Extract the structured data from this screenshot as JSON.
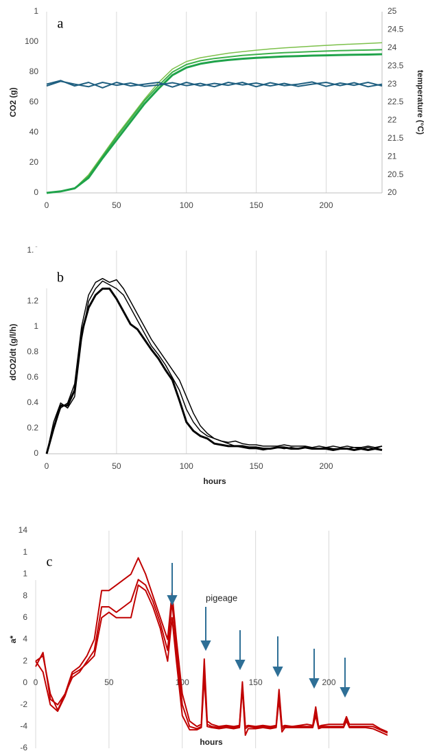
{
  "chart_data": [
    {
      "type": "line",
      "panel_label": "a",
      "ylabel": "CO2 (g)",
      "y2label": "temperature (°C)",
      "x": [
        0,
        10,
        20,
        30,
        40,
        50,
        60,
        70,
        80,
        90,
        100,
        110,
        120,
        130,
        140,
        150,
        160,
        170,
        180,
        190,
        200,
        210,
        220,
        230,
        240
      ],
      "xlim": [
        0,
        240
      ],
      "xticks": [
        0,
        50,
        100,
        150,
        200
      ],
      "ylim": [
        0,
        120
      ],
      "yticks": [
        0,
        20,
        40,
        60,
        80,
        100,
        {
          "value": 120,
          "label": "1"
        }
      ],
      "y2lim": [
        20,
        25
      ],
      "y2ticks": [
        20,
        20.5,
        21,
        21.5,
        22,
        22.5,
        23,
        23.5,
        24,
        24.5,
        25
      ],
      "grid": "x",
      "series": [
        {
          "color": "#7cc04a",
          "line_width": 1.5,
          "values": [
            0,
            1,
            3,
            12,
            25,
            38,
            50,
            62,
            73,
            82,
            87,
            89.5,
            91,
            92.5,
            93.5,
            94.5,
            95.3,
            96,
            96.6,
            97.2,
            97.7,
            98.2,
            98.6,
            99,
            99.4
          ]
        },
        {
          "color": "#3cb04a",
          "line_width": 2,
          "values": [
            0,
            1,
            3,
            11,
            24,
            37,
            49,
            61,
            71,
            80,
            85,
            87.5,
            89,
            90,
            91,
            91.7,
            92.3,
            92.8,
            93.2,
            93.6,
            93.9,
            94.2,
            94.4,
            94.6,
            94.8
          ]
        },
        {
          "color": "#1fa34a",
          "line_width": 3,
          "values": [
            0,
            1,
            3,
            10,
            23,
            35,
            47,
            59,
            69,
            78,
            83,
            85.5,
            87,
            88,
            88.8,
            89.4,
            89.9,
            90.3,
            90.6,
            90.9,
            91.1,
            91.3,
            91.5,
            91.6,
            91.8
          ]
        },
        {
          "color": "#1f5f80",
          "line_width": 2,
          "axis": "y2",
          "values": [
            23,
            23.1,
            22.95,
            23.05,
            22.9,
            23.05,
            22.95,
            23.0,
            23.05,
            22.92,
            23.05,
            22.95,
            23.02,
            22.97,
            23.05,
            22.93,
            23.04,
            22.96,
            23.0,
            23.06,
            22.94,
            23.03,
            22.97,
            23.05,
            22.95
          ]
        },
        {
          "color": "#1f5f80",
          "line_width": 2,
          "axis": "y2",
          "values": [
            22.95,
            23.08,
            23.0,
            22.93,
            23.05,
            22.97,
            23.03,
            22.94,
            22.98,
            23.04,
            22.96,
            23.02,
            22.93,
            23.05,
            22.98,
            23.03,
            22.95,
            23.02,
            22.94,
            23.0,
            23.05,
            22.96,
            23.04,
            22.93,
            23.0
          ]
        }
      ]
    },
    {
      "type": "line",
      "panel_label": "b",
      "ylabel": "dCO2/dt (g/l/h)",
      "xlabel": "hours",
      "x": [
        0,
        5,
        10,
        15,
        20,
        25,
        30,
        35,
        40,
        45,
        50,
        55,
        60,
        65,
        70,
        75,
        80,
        85,
        90,
        95,
        100,
        105,
        110,
        115,
        120,
        125,
        130,
        135,
        140,
        145,
        150,
        155,
        160,
        165,
        170,
        175,
        180,
        185,
        190,
        195,
        200,
        205,
        210,
        215,
        220,
        225,
        230,
        235,
        240
      ],
      "xlim": [
        0,
        240
      ],
      "xticks": [
        0,
        50,
        100,
        150,
        200
      ],
      "ylim": [
        0,
        1.6
      ],
      "yticks": [
        0,
        0.2,
        0.4,
        0.6,
        0.8,
        1,
        1.2,
        {
          "value": 1.4,
          "label": "1"
        },
        {
          "value": 1.6,
          "label": "1.6"
        }
      ],
      "grid": "x",
      "series": [
        {
          "color": "#000000",
          "line_width": 3,
          "values": [
            0,
            0.2,
            0.38,
            0.38,
            0.5,
            0.95,
            1.15,
            1.25,
            1.3,
            1.3,
            1.22,
            1.12,
            1.02,
            0.98,
            0.9,
            0.82,
            0.75,
            0.66,
            0.58,
            0.42,
            0.25,
            0.18,
            0.14,
            0.12,
            0.08,
            0.07,
            0.06,
            0.06,
            0.06,
            0.05,
            0.05,
            0.04,
            0.04,
            0.05,
            0.05,
            0.04,
            0.04,
            0.05,
            0.04,
            0.04,
            0.04,
            0.03,
            0.04,
            0.04,
            0.03,
            0.04,
            0.03,
            0.04,
            0.03
          ]
        },
        {
          "color": "#000000",
          "line_width": 1.5,
          "values": [
            0,
            0.25,
            0.4,
            0.36,
            0.45,
            0.9,
            1.2,
            1.3,
            1.36,
            1.33,
            1.3,
            1.25,
            1.15,
            1.05,
            0.95,
            0.85,
            0.78,
            0.7,
            0.6,
            0.5,
            0.35,
            0.25,
            0.18,
            0.14,
            0.12,
            0.1,
            0.09,
            0.1,
            0.08,
            0.07,
            0.07,
            0.06,
            0.06,
            0.06,
            0.07,
            0.06,
            0.06,
            0.06,
            0.05,
            0.06,
            0.05,
            0.06,
            0.05,
            0.06,
            0.05,
            0.05,
            0.06,
            0.05,
            0.06
          ]
        },
        {
          "color": "#000000",
          "line_width": 1.5,
          "values": [
            0,
            0.2,
            0.36,
            0.4,
            0.55,
            1.0,
            1.25,
            1.35,
            1.38,
            1.35,
            1.37,
            1.3,
            1.2,
            1.1,
            1.0,
            0.9,
            0.82,
            0.74,
            0.66,
            0.58,
            0.45,
            0.32,
            0.22,
            0.16,
            0.12,
            0.1,
            0.08,
            0.06,
            0.05,
            0.04,
            0.04,
            0.03,
            0.04,
            0.05,
            0.04,
            0.05,
            0.04,
            0.05,
            0.04,
            0.04,
            0.05,
            0.04,
            0.04,
            0.04,
            0.05,
            0.04,
            0.05,
            0.04,
            0.06
          ]
        }
      ]
    },
    {
      "type": "line",
      "panel_label": "c",
      "ylabel": "a*",
      "xlabel": "hours",
      "annotation": "pigeage",
      "x": [
        0,
        5,
        10,
        15,
        20,
        25,
        30,
        35,
        40,
        45,
        50,
        55,
        60,
        65,
        70,
        75,
        80,
        85,
        90,
        93,
        96,
        100,
        105,
        110,
        113,
        115,
        117,
        120,
        125,
        130,
        135,
        139,
        141,
        143,
        145,
        150,
        155,
        160,
        164,
        166,
        168,
        170,
        175,
        180,
        185,
        189,
        191,
        193,
        195,
        200,
        205,
        210,
        212,
        214,
        220,
        225,
        230,
        235,
        240
      ],
      "xlim": [
        0,
        240
      ],
      "xticks": [
        0,
        50,
        100,
        150,
        200
      ],
      "ylim": [
        -6,
        14
      ],
      "yticks": [
        -6,
        -4,
        -2,
        0,
        2,
        4,
        6,
        8,
        {
          "value": 10,
          "label": "1"
        },
        {
          "value": 12,
          "label": "1"
        },
        {
          "value": 14,
          "label": "14"
        }
      ],
      "grid": "x",
      "series": [
        {
          "color": "#c00000",
          "line_width": 2,
          "values": [
            2,
            2.5,
            -1,
            -2.5,
            -1,
            1,
            1.5,
            2.5,
            4,
            8.5,
            8.5,
            9,
            9.5,
            10,
            11.5,
            10,
            8,
            6,
            4,
            8.3,
            4,
            -1,
            -3.5,
            -4,
            -3.8,
            2.2,
            -3.5,
            -3.8,
            -4,
            -3.9,
            -4,
            -3.9,
            0.1,
            -4,
            -3.9,
            -4,
            -3.9,
            -4,
            -3.9,
            -0.6,
            -4,
            -3.9,
            -4,
            -3.9,
            -3.8,
            -3.9,
            -2.2,
            -4,
            -3.9,
            -3.8,
            -3.8,
            -3.8,
            -3.1,
            -3.8,
            -3.8,
            -3.8,
            -3.8,
            -4.2,
            -4.5
          ]
        },
        {
          "color": "#c00000",
          "line_width": 2,
          "values": [
            1.5,
            2.8,
            -1.5,
            -2,
            -1,
            0.5,
            1,
            2,
            3,
            7,
            7,
            6.5,
            7,
            7.5,
            9.5,
            9,
            7.5,
            5.5,
            3,
            7.5,
            3,
            -2,
            -4,
            -4.2,
            -4,
            1.5,
            -3.8,
            -4,
            -4.1,
            -4,
            -4.1,
            -4,
            -0.2,
            -4.2,
            -4,
            -4.1,
            -4,
            -4.1,
            -4,
            -1,
            -4.2,
            -4,
            -4,
            -4,
            -4,
            -4,
            -2.5,
            -4.1,
            -4,
            -4,
            -4,
            -4,
            -3.3,
            -4,
            -4,
            -4,
            -4,
            -4.3,
            -4.6
          ]
        },
        {
          "color": "#c00000",
          "line_width": 2,
          "values": [
            2,
            1,
            -2,
            -2.6,
            -1.2,
            0.8,
            1.2,
            1.8,
            2.5,
            6,
            6.5,
            6,
            6,
            6,
            9,
            8.5,
            7,
            5,
            2,
            6,
            2,
            -3,
            -4.3,
            -4.3,
            -4.1,
            0.5,
            -4,
            -4.1,
            -4.2,
            -4.1,
            -4.2,
            -4.1,
            -0.5,
            -4.8,
            -4.2,
            -4.2,
            -4.1,
            -4.2,
            -4.1,
            -1.5,
            -4.5,
            -4.1,
            -4.1,
            -4.1,
            -4.1,
            -4.1,
            -3,
            -4.2,
            -4.1,
            -4.1,
            -4.1,
            -4.1,
            -3.5,
            -4.1,
            -4.1,
            -4.1,
            -4.2,
            -4.5,
            -4.8
          ]
        }
      ]
    }
  ]
}
